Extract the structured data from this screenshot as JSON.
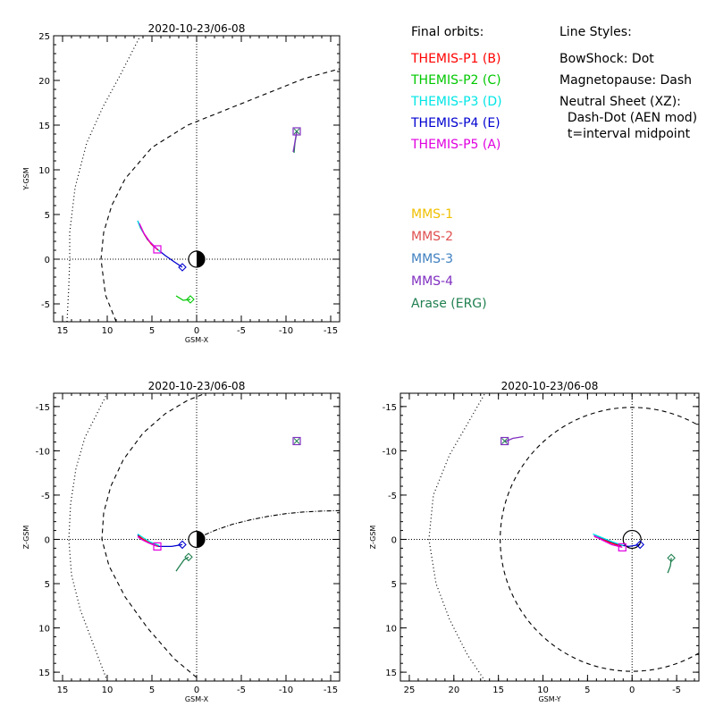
{
  "legend": {
    "orbits_title": "Final orbits:",
    "styles_title": "Line Styles:",
    "probes": [
      {
        "label": "THEMIS-P1 (B)",
        "color": "#ff0000"
      },
      {
        "label": "THEMIS-P2 (C)",
        "color": "#00c800"
      },
      {
        "label": "THEMIS-P3 (D)",
        "color": "#00e5e5"
      },
      {
        "label": "THEMIS-P4 (E)",
        "color": "#0000d0"
      },
      {
        "label": "THEMIS-P5 (A)",
        "color": "#e000e0"
      }
    ],
    "styles": [
      "BowShock: Dot",
      "Magnetopause: Dash",
      "Neutral Sheet (XZ):",
      "  Dash-Dot (AEN mod)",
      "  t=interval midpoint"
    ],
    "other_missions": [
      {
        "label": "MMS-1",
        "color": "#f0c000"
      },
      {
        "label": "MMS-2",
        "color": "#e05050"
      },
      {
        "label": "MMS-3",
        "color": "#4080c0"
      },
      {
        "label": "MMS-4",
        "color": "#8030c0"
      },
      {
        "label": "Arase (ERG)",
        "color": "#208050"
      }
    ]
  },
  "chart_data": [
    {
      "type": "line",
      "title": "2020-10-23/06-08",
      "xlabel": "GSM-X",
      "ylabel": "Y-GSM",
      "xlim": [
        16,
        -16
      ],
      "ylim": [
        25,
        -7
      ],
      "xticks": [
        15,
        10,
        5,
        0,
        -5,
        -10,
        -15
      ],
      "yticks": [
        -5,
        0,
        5,
        10,
        15,
        20,
        25
      ],
      "earth": true,
      "series": [
        {
          "kind": "bowshock",
          "style": "dot",
          "points": [
            [
              14.5,
              -7
            ],
            [
              14.3,
              -3
            ],
            [
              14.2,
              0
            ],
            [
              14.2,
              3
            ],
            [
              13.6,
              8
            ],
            [
              12.3,
              13
            ],
            [
              10.5,
              17
            ],
            [
              8.6,
              20.5
            ],
            [
              6.3,
              25
            ]
          ]
        },
        {
          "kind": "magnetopause",
          "style": "dash",
          "points": [
            [
              9,
              -7
            ],
            [
              10.2,
              -4
            ],
            [
              10.7,
              0
            ],
            [
              10.4,
              3
            ],
            [
              9.5,
              6
            ],
            [
              8,
              9
            ],
            [
              5,
              12.5
            ],
            [
              1,
              15
            ],
            [
              -3,
              16.6
            ],
            [
              -8,
              18.6
            ],
            [
              -12,
              20.2
            ],
            [
              -16,
              21.3
            ]
          ]
        },
        {
          "kind": "orbit",
          "color": "#0000d0",
          "points": [
            [
              1.6,
              -0.9
            ],
            [
              2.5,
              -0.3
            ],
            [
              3.5,
              0.4
            ],
            [
              4.5,
              1.2
            ],
            [
              5.5,
              2.2
            ],
            [
              6.1,
              3.2
            ],
            [
              6.6,
              4.3
            ]
          ]
        },
        {
          "kind": "orbit",
          "color": "#00e5e5",
          "points": [
            [
              4.0,
              0.8
            ],
            [
              4.9,
              1.5
            ],
            [
              5.6,
              2.4
            ],
            [
              6.3,
              3.5
            ],
            [
              6.6,
              4.3
            ]
          ]
        },
        {
          "kind": "orbit",
          "color": "#ff0000",
          "points": [
            [
              4.3,
              1.0
            ],
            [
              5.1,
              1.7
            ],
            [
              5.8,
              2.7
            ],
            [
              6.3,
              3.7
            ]
          ]
        },
        {
          "kind": "orbit",
          "color": "#e000e0",
          "points": [
            [
              4.4,
              1.1
            ],
            [
              5.2,
              1.9
            ],
            [
              5.9,
              2.9
            ],
            [
              6.4,
              4.0
            ]
          ]
        },
        {
          "kind": "orbit",
          "color": "#00c800",
          "points": [
            [
              0.7,
              -4.5
            ],
            [
              1.5,
              -4.6
            ],
            [
              2.3,
              -4.1
            ]
          ]
        },
        {
          "kind": "orbit",
          "color": "#208050",
          "points": [
            [
              -10.9,
              11.9
            ],
            [
              -11.0,
              13.0
            ],
            [
              -11.2,
              14.2
            ]
          ]
        },
        {
          "kind": "orbit",
          "color": "#8030c0",
          "points": [
            [
              -10.8,
              12.0
            ],
            [
              -11.0,
              13.1
            ],
            [
              -11.2,
              14.3
            ]
          ]
        }
      ],
      "markers": [
        {
          "shape": "diamond",
          "color": "#0000d0",
          "x": 1.6,
          "y": -0.9
        },
        {
          "shape": "diamond",
          "color": "#00c800",
          "x": 0.7,
          "y": -4.5
        },
        {
          "shape": "square",
          "color": "#e000e0",
          "x": 4.4,
          "y": 1.1
        },
        {
          "shape": "square",
          "color": "#8030c0",
          "x": -11.2,
          "y": 14.3
        },
        {
          "shape": "cross",
          "color": "#208050",
          "x": -11.2,
          "y": 14.3
        }
      ]
    },
    {
      "type": "line",
      "title": "2020-10-23/06-08",
      "xlabel": "GSM-X",
      "ylabel": "Z-GSM",
      "xlim": [
        16,
        -16
      ],
      "ylim": [
        -16.5,
        16
      ],
      "xticks": [
        15,
        10,
        5,
        0,
        -5,
        -10,
        -15
      ],
      "yticks": [
        -15,
        -10,
        -5,
        0,
        5,
        10,
        15
      ],
      "earth": true,
      "series": [
        {
          "kind": "bowshock",
          "style": "dot",
          "points": [
            [
              10,
              16
            ],
            [
              11.5,
              12
            ],
            [
              13,
              8
            ],
            [
              14,
              4
            ],
            [
              14.3,
              0
            ],
            [
              14.1,
              -4
            ],
            [
              13.5,
              -8
            ],
            [
              12.5,
              -11.5
            ],
            [
              11,
              -14.5
            ],
            [
              10,
              -16.5
            ]
          ]
        },
        {
          "kind": "magnetopause",
          "style": "dash",
          "points": [
            [
              0,
              15.6
            ],
            [
              2.5,
              13.5
            ],
            [
              5.5,
              10
            ],
            [
              8,
              6.5
            ],
            [
              9.8,
              3
            ],
            [
              10.6,
              0
            ],
            [
              10.4,
              -3
            ],
            [
              9.6,
              -6
            ],
            [
              8.2,
              -9
            ],
            [
              6,
              -12
            ],
            [
              3.5,
              -14.2
            ],
            [
              1,
              -15.7
            ],
            [
              -1,
              -16.5
            ]
          ]
        },
        {
          "kind": "neutralsheet",
          "style": "dashdot",
          "points": [
            [
              0,
              -0.1
            ],
            [
              -2,
              -1.0
            ],
            [
              -4,
              -1.7
            ],
            [
              -6,
              -2.2
            ],
            [
              -8,
              -2.6
            ],
            [
              -10,
              -2.9
            ],
            [
              -12,
              -3.1
            ],
            [
              -14,
              -3.2
            ],
            [
              -16,
              -3.25
            ]
          ]
        },
        {
          "kind": "orbit",
          "color": "#0000d0",
          "points": [
            [
              1.6,
              0.6
            ],
            [
              2.8,
              0.8
            ],
            [
              4.2,
              0.8
            ],
            [
              5.3,
              0.4
            ],
            [
              6.2,
              -0.1
            ],
            [
              6.6,
              -0.5
            ]
          ]
        },
        {
          "kind": "orbit",
          "color": "#00e5e5",
          "points": [
            [
              4.2,
              0.7
            ],
            [
              5.2,
              0.3
            ],
            [
              6.0,
              -0.2
            ],
            [
              6.6,
              -0.6
            ]
          ]
        },
        {
          "kind": "orbit",
          "color": "#ff0000",
          "points": [
            [
              4.3,
              0.8
            ],
            [
              5.3,
              0.4
            ],
            [
              6.1,
              -0.1
            ],
            [
              6.5,
              -0.4
            ]
          ]
        },
        {
          "kind": "orbit",
          "color": "#e000e0",
          "points": [
            [
              4.4,
              0.8
            ],
            [
              5.4,
              0.4
            ],
            [
              6.2,
              0
            ],
            [
              6.6,
              -0.3
            ]
          ]
        },
        {
          "kind": "orbit",
          "color": "#208050",
          "points": [
            [
              2.3,
              3.6
            ],
            [
              1.9,
              3.0
            ],
            [
              1.4,
              2.3
            ],
            [
              0.9,
              2.0
            ]
          ]
        }
      ],
      "markers": [
        {
          "shape": "diamond",
          "color": "#0000d0",
          "x": 1.6,
          "y": 0.6
        },
        {
          "shape": "diamond",
          "color": "#208050",
          "x": 0.9,
          "y": 2.0
        },
        {
          "shape": "square",
          "color": "#e000e0",
          "x": 4.4,
          "y": 0.8
        },
        {
          "shape": "square",
          "color": "#8030c0",
          "x": -11.2,
          "y": -11.1
        },
        {
          "shape": "cross",
          "color": "#208050",
          "x": -11.2,
          "y": -11.1
        }
      ]
    },
    {
      "type": "line",
      "title": "2020-10-23/06-08",
      "xlabel": "GSM-Y",
      "ylabel": "Z-GSM",
      "xlim": [
        26,
        -7.5
      ],
      "ylim": [
        -16.5,
        16
      ],
      "xticks": [
        25,
        20,
        15,
        10,
        5,
        0,
        -5
      ],
      "yticks": [
        -15,
        -10,
        -5,
        0,
        5,
        10,
        15
      ],
      "earth": false,
      "series": [
        {
          "kind": "bowshock",
          "style": "dot",
          "points": [
            [
              16.5,
              16
            ],
            [
              18.5,
              13
            ],
            [
              20.5,
              9
            ],
            [
              22,
              5
            ],
            [
              22.8,
              0
            ],
            [
              22.3,
              -5
            ],
            [
              20.5,
              -9.5
            ],
            [
              18.5,
              -13
            ],
            [
              16.5,
              -16.5
            ]
          ]
        },
        {
          "kind": "magnetopause",
          "style": "ellipse",
          "cx": 0,
          "cy": 0,
          "rx": 14.8,
          "ry": 14.9
        },
        {
          "kind": "orbit",
          "color": "#0000d0",
          "points": [
            [
              -0.9,
              0.6
            ],
            [
              0.4,
              0.8
            ],
            [
              1.6,
              0.6
            ],
            [
              2.8,
              0.1
            ],
            [
              4.2,
              -0.5
            ]
          ]
        },
        {
          "kind": "orbit",
          "color": "#00e5e5",
          "points": [
            [
              1.0,
              0.7
            ],
            [
              2.2,
              0.3
            ],
            [
              3.4,
              -0.2
            ],
            [
              4.4,
              -0.6
            ]
          ]
        },
        {
          "kind": "orbit",
          "color": "#ff0000",
          "points": [
            [
              1.2,
              0.8
            ],
            [
              2.4,
              0.4
            ],
            [
              3.6,
              -0.1
            ],
            [
              4.2,
              -0.3
            ]
          ]
        },
        {
          "kind": "orbit",
          "color": "#e000e0",
          "points": [
            [
              1.1,
              0.9
            ],
            [
              2.3,
              0.6
            ],
            [
              3.5,
              0
            ],
            [
              4.3,
              -0.4
            ]
          ]
        },
        {
          "kind": "orbit",
          "color": "#208050",
          "points": [
            [
              -4.0,
              3.8
            ],
            [
              -4.3,
              3.0
            ],
            [
              -4.4,
              2.1
            ]
          ]
        },
        {
          "kind": "orbit",
          "color": "#8030c0",
          "points": [
            [
              14.3,
              -11.0
            ],
            [
              13.4,
              -11.4
            ],
            [
              12.2,
              -11.6
            ]
          ]
        }
      ],
      "markers": [
        {
          "shape": "diamond",
          "color": "#0000d0",
          "x": -0.9,
          "y": 0.6
        },
        {
          "shape": "diamond",
          "color": "#208050",
          "x": -4.4,
          "y": 2.1
        },
        {
          "shape": "square",
          "color": "#e000e0",
          "x": 1.1,
          "y": 0.9
        },
        {
          "shape": "square",
          "color": "#8030c0",
          "x": 14.3,
          "y": -11.1
        },
        {
          "shape": "cross",
          "color": "#208050",
          "x": 14.3,
          "y": -11.1
        }
      ],
      "circle": {
        "x": 0,
        "y": 0,
        "r": 1
      }
    }
  ]
}
